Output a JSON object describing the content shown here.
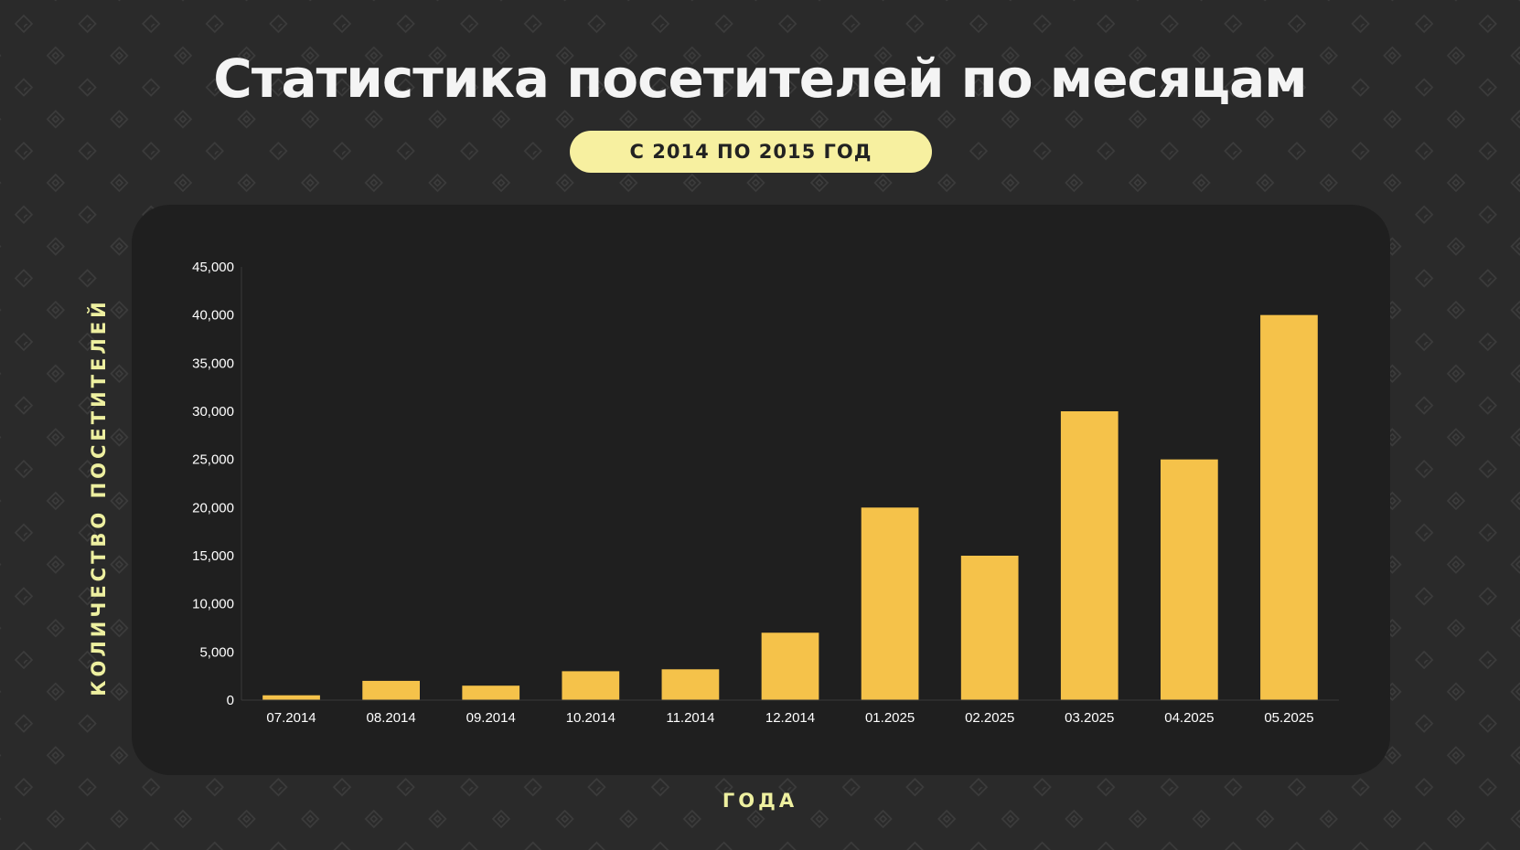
{
  "colors": {
    "background": "#2a2a2a",
    "panel": "#1f1f1f",
    "bar": "#f5c24a",
    "title": "#f4f4f4",
    "pill": "#f7f0a0",
    "axis_title": "#eef0a0"
  },
  "chart_data": {
    "type": "bar",
    "title": "Статистика посетителей по месяцам",
    "subtitle": "С 2014 ПО 2015 ГОД",
    "xlabel": "ГОДА",
    "ylabel": "КОЛИЧЕСТВО ПОСЕТИТЕЛЕЙ",
    "categories": [
      "07.2014",
      "08.2014",
      "09.2014",
      "10.2014",
      "11.2014",
      "12.2014",
      "01.2025",
      "02.2025",
      "03.2025",
      "04.2025",
      "05.2025"
    ],
    "values": [
      500,
      2000,
      1500,
      3000,
      3200,
      7000,
      20000,
      15000,
      30000,
      25000,
      40000
    ],
    "ylim": [
      0,
      45000
    ],
    "yticks": [
      "0",
      "5,000",
      "10,000",
      "15,000",
      "20,000",
      "25,000",
      "30,000",
      "35,000",
      "40,000",
      "45,000"
    ],
    "grid": false,
    "legend": "none"
  }
}
